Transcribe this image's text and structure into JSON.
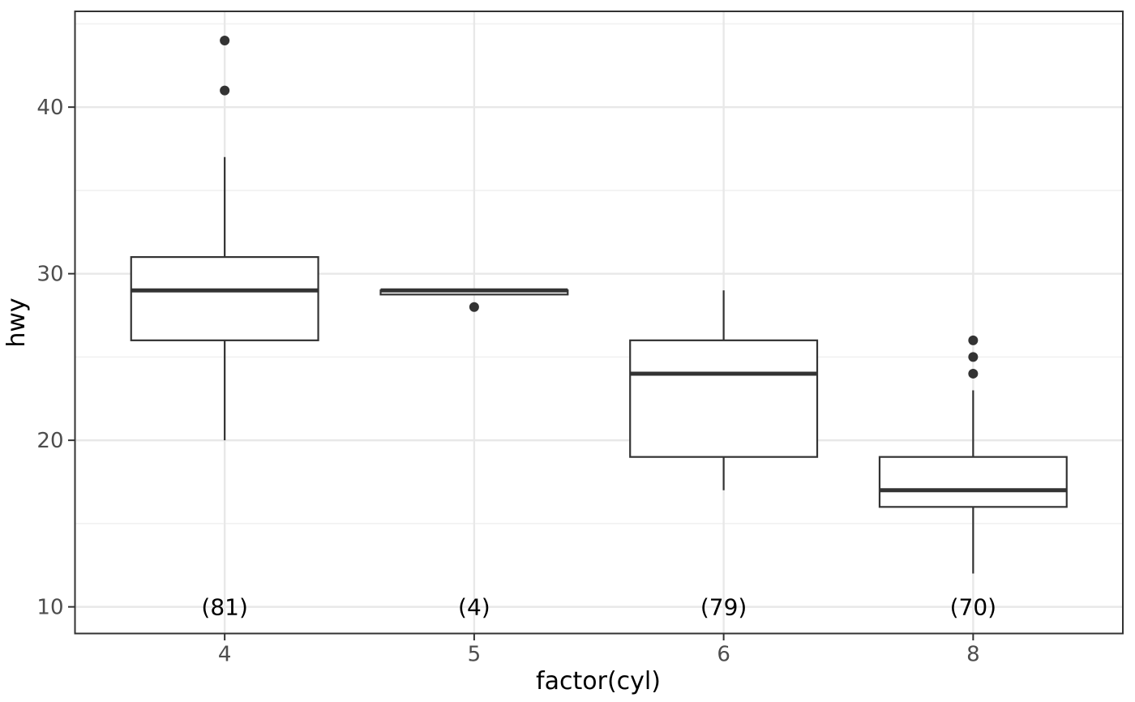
{
  "chart_data": {
    "type": "boxplot",
    "title": "",
    "xlabel": "factor(cyl)",
    "ylabel": "hwy",
    "categories": [
      "4",
      "5",
      "6",
      "8"
    ],
    "y_ticks": [
      10,
      20,
      30,
      40
    ],
    "y_minor_ticks": [
      15,
      25,
      35,
      45
    ],
    "ylim": [
      8.4,
      45.75
    ],
    "grid": {
      "major": true,
      "minor": true,
      "vertical_major_at_categories": true
    },
    "legend_position": "none",
    "series": [
      {
        "category": "4",
        "count_label": "(81)",
        "whisker_low": 20,
        "q1": 26,
        "median": 29,
        "q3": 31,
        "whisker_high": 37,
        "outliers": [
          41,
          44
        ]
      },
      {
        "category": "5",
        "count_label": "(4)",
        "whisker_low": 28.75,
        "q1": 28.75,
        "median": 29,
        "q3": 29,
        "whisker_high": 29,
        "outliers": [
          28
        ]
      },
      {
        "category": "6",
        "count_label": "(79)",
        "whisker_low": 17,
        "q1": 19,
        "median": 24,
        "q3": 26,
        "whisker_high": 29,
        "outliers": []
      },
      {
        "category": "8",
        "count_label": "(70)",
        "whisker_low": 12,
        "q1": 16,
        "median": 17,
        "q3": 19,
        "whisker_high": 23,
        "outliers": [
          24,
          25,
          26
        ]
      }
    ],
    "count_labels_y": 10
  },
  "style": {
    "background": "#FFFFFF",
    "panel_background": "#FFFFFF",
    "panel_border": "#333333",
    "grid_major_color": "#E8E8E8",
    "grid_minor_color": "#F1F1F1",
    "box_stroke": "#333333",
    "box_fill": "#FFFFFF",
    "median_color": "#333333",
    "outlier_color": "#333333",
    "tick_color": "#333333",
    "tick_label_color": "#4D4D4D",
    "axis_title_color": "#000000",
    "count_label_color": "#000000"
  }
}
